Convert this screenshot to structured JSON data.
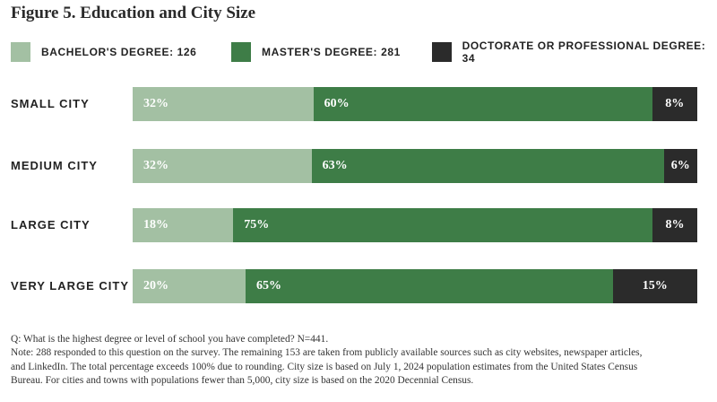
{
  "colors": {
    "bachelor": "#a3c0a3",
    "master": "#3e7d47",
    "doctorate": "#2b2b2b"
  },
  "chart_data": {
    "type": "bar",
    "orientation": "horizontal",
    "stacked": true,
    "title": "Figure 5. Education and City Size",
    "categories": [
      "SMALL CITY",
      "MEDIUM CITY",
      "LARGE CITY",
      "VERY LARGE CITY"
    ],
    "series": [
      {
        "name": "BACHELOR'S DEGREE: 126",
        "values": [
          32,
          32,
          18,
          20
        ],
        "labels": [
          "32%",
          "32%",
          "18%",
          "20%"
        ]
      },
      {
        "name": "MASTER'S DEGREE: 281",
        "values": [
          60,
          63,
          75,
          65
        ],
        "labels": [
          "60%",
          "63%",
          "75%",
          "65%"
        ]
      },
      {
        "name": "DOCTORATE OR PROFESSIONAL DEGREE: 34",
        "values": [
          8,
          6,
          8,
          15
        ],
        "labels": [
          "8%",
          "6%",
          "8%",
          "15%"
        ]
      }
    ],
    "legend": "top"
  },
  "notes": [
    "Q: What is the highest degree or level of school you have completed? N=441.",
    "Note: 288 responded to this question on the survey. The remaining 153 are taken from publicly available sources such as city websites, newspaper articles,",
    "and LinkedIn. The total percentage exceeds 100% due to rounding. City size is based on July 1, 2024 population estimates from the United States Census",
    "Bureau. For cities and towns with populations fewer than 5,000, city size is based on the 2020 Decennial Census."
  ]
}
